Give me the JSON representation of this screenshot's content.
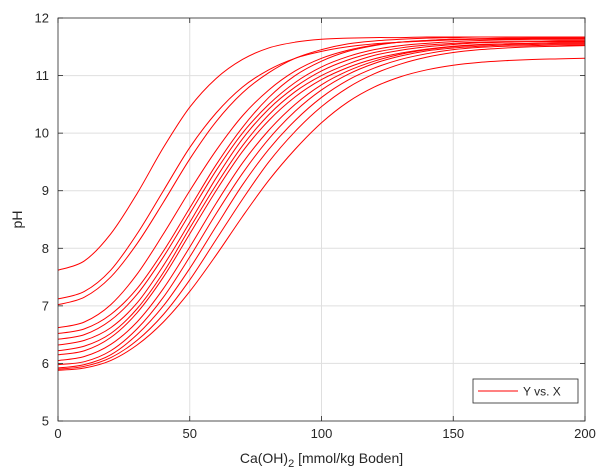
{
  "chart_data": {
    "type": "line",
    "xlabel_main": "Ca(OH)",
    "xlabel_sub": "2",
    "xlabel_rest": " [mmol/kg Boden]",
    "ylabel": "pH",
    "xlim": [
      0,
      200
    ],
    "ylim": [
      5,
      12
    ],
    "xticks": [
      "0",
      "50",
      "100",
      "150",
      "200"
    ],
    "yticks": [
      "5",
      "6",
      "7",
      "8",
      "9",
      "10",
      "11",
      "12"
    ],
    "grid": true,
    "legend": {
      "label": "Y vs. X",
      "placement": "bottom-right"
    },
    "line_color": "#ff0000",
    "x": [
      0,
      10,
      20,
      30,
      40,
      50,
      60,
      70,
      80,
      90,
      100,
      110,
      120,
      130,
      140,
      150,
      160,
      170,
      180,
      190,
      200
    ],
    "series": [
      {
        "values": [
          7.62,
          7.78,
          8.25,
          8.95,
          9.75,
          10.45,
          10.95,
          11.28,
          11.48,
          11.58,
          11.63,
          11.65,
          11.66,
          11.66,
          11.67,
          11.67,
          11.67,
          11.67,
          11.67,
          11.67,
          11.67
        ]
      },
      {
        "values": [
          7.12,
          7.25,
          7.62,
          8.25,
          9.0,
          9.75,
          10.35,
          10.8,
          11.1,
          11.3,
          11.42,
          11.5,
          11.55,
          11.58,
          11.6,
          11.62,
          11.63,
          11.63,
          11.64,
          11.64,
          11.64
        ]
      },
      {
        "values": [
          7.02,
          7.15,
          7.5,
          8.08,
          8.8,
          9.55,
          10.2,
          10.7,
          11.05,
          11.3,
          11.45,
          11.55,
          11.6,
          11.63,
          11.65,
          11.66,
          11.67,
          11.67,
          11.67,
          11.67,
          11.67
        ]
      },
      {
        "values": [
          6.62,
          6.72,
          7.02,
          7.55,
          8.25,
          9.0,
          9.7,
          10.3,
          10.75,
          11.08,
          11.3,
          11.44,
          11.53,
          11.58,
          11.61,
          11.63,
          11.64,
          11.64,
          11.65,
          11.65,
          11.65
        ]
      },
      {
        "values": [
          6.52,
          6.6,
          6.85,
          7.3,
          7.95,
          8.7,
          9.45,
          10.1,
          10.62,
          11.0,
          11.25,
          11.42,
          11.52,
          11.58,
          11.61,
          11.63,
          11.64,
          11.65,
          11.65,
          11.65,
          11.65
        ]
      },
      {
        "values": [
          6.42,
          6.5,
          6.75,
          7.2,
          7.85,
          8.6,
          9.35,
          10.0,
          10.5,
          10.88,
          11.15,
          11.33,
          11.45,
          11.52,
          11.56,
          11.59,
          11.61,
          11.62,
          11.62,
          11.62,
          11.62
        ]
      },
      {
        "values": [
          6.32,
          6.4,
          6.62,
          7.05,
          7.7,
          8.45,
          9.22,
          9.9,
          10.42,
          10.8,
          11.08,
          11.27,
          11.4,
          11.48,
          11.53,
          11.56,
          11.58,
          11.59,
          11.59,
          11.6,
          11.6
        ]
      },
      {
        "values": [
          6.22,
          6.3,
          6.52,
          6.95,
          7.58,
          8.35,
          9.1,
          9.78,
          10.32,
          10.72,
          11.0,
          11.2,
          11.35,
          11.44,
          11.5,
          11.54,
          11.57,
          11.58,
          11.59,
          11.59,
          11.59
        ]
      },
      {
        "values": [
          6.15,
          6.22,
          6.45,
          6.88,
          7.5,
          8.25,
          9.0,
          9.68,
          10.22,
          10.63,
          10.93,
          11.14,
          11.29,
          11.39,
          11.46,
          11.51,
          11.54,
          11.55,
          11.56,
          11.57,
          11.57
        ]
      },
      {
        "values": [
          6.05,
          6.12,
          6.33,
          6.72,
          7.3,
          8.02,
          8.78,
          9.48,
          10.05,
          10.5,
          10.84,
          11.08,
          11.25,
          11.37,
          11.45,
          11.5,
          11.53,
          11.55,
          11.56,
          11.57,
          11.57
        ]
      },
      {
        "values": [
          5.98,
          6.03,
          6.22,
          6.6,
          7.15,
          7.85,
          8.6,
          9.3,
          9.9,
          10.38,
          10.75,
          11.02,
          11.21,
          11.34,
          11.43,
          11.48,
          11.51,
          11.53,
          11.54,
          11.55,
          11.55
        ]
      },
      {
        "values": [
          5.92,
          5.98,
          6.15,
          6.5,
          7.0,
          7.65,
          8.38,
          9.1,
          9.72,
          10.22,
          10.62,
          10.92,
          11.13,
          11.28,
          11.38,
          11.45,
          11.49,
          11.51,
          11.52,
          11.53,
          11.53
        ]
      },
      {
        "values": [
          5.9,
          5.95,
          6.1,
          6.4,
          6.85,
          7.45,
          8.15,
          8.85,
          9.5,
          10.03,
          10.46,
          10.79,
          11.03,
          11.2,
          11.32,
          11.4,
          11.45,
          11.48,
          11.5,
          11.51,
          11.52
        ]
      },
      {
        "values": [
          5.88,
          5.92,
          6.05,
          6.32,
          6.72,
          7.25,
          7.88,
          8.55,
          9.18,
          9.72,
          10.18,
          10.54,
          10.8,
          10.98,
          11.1,
          11.18,
          11.23,
          11.26,
          11.28,
          11.29,
          11.3
        ]
      }
    ]
  }
}
